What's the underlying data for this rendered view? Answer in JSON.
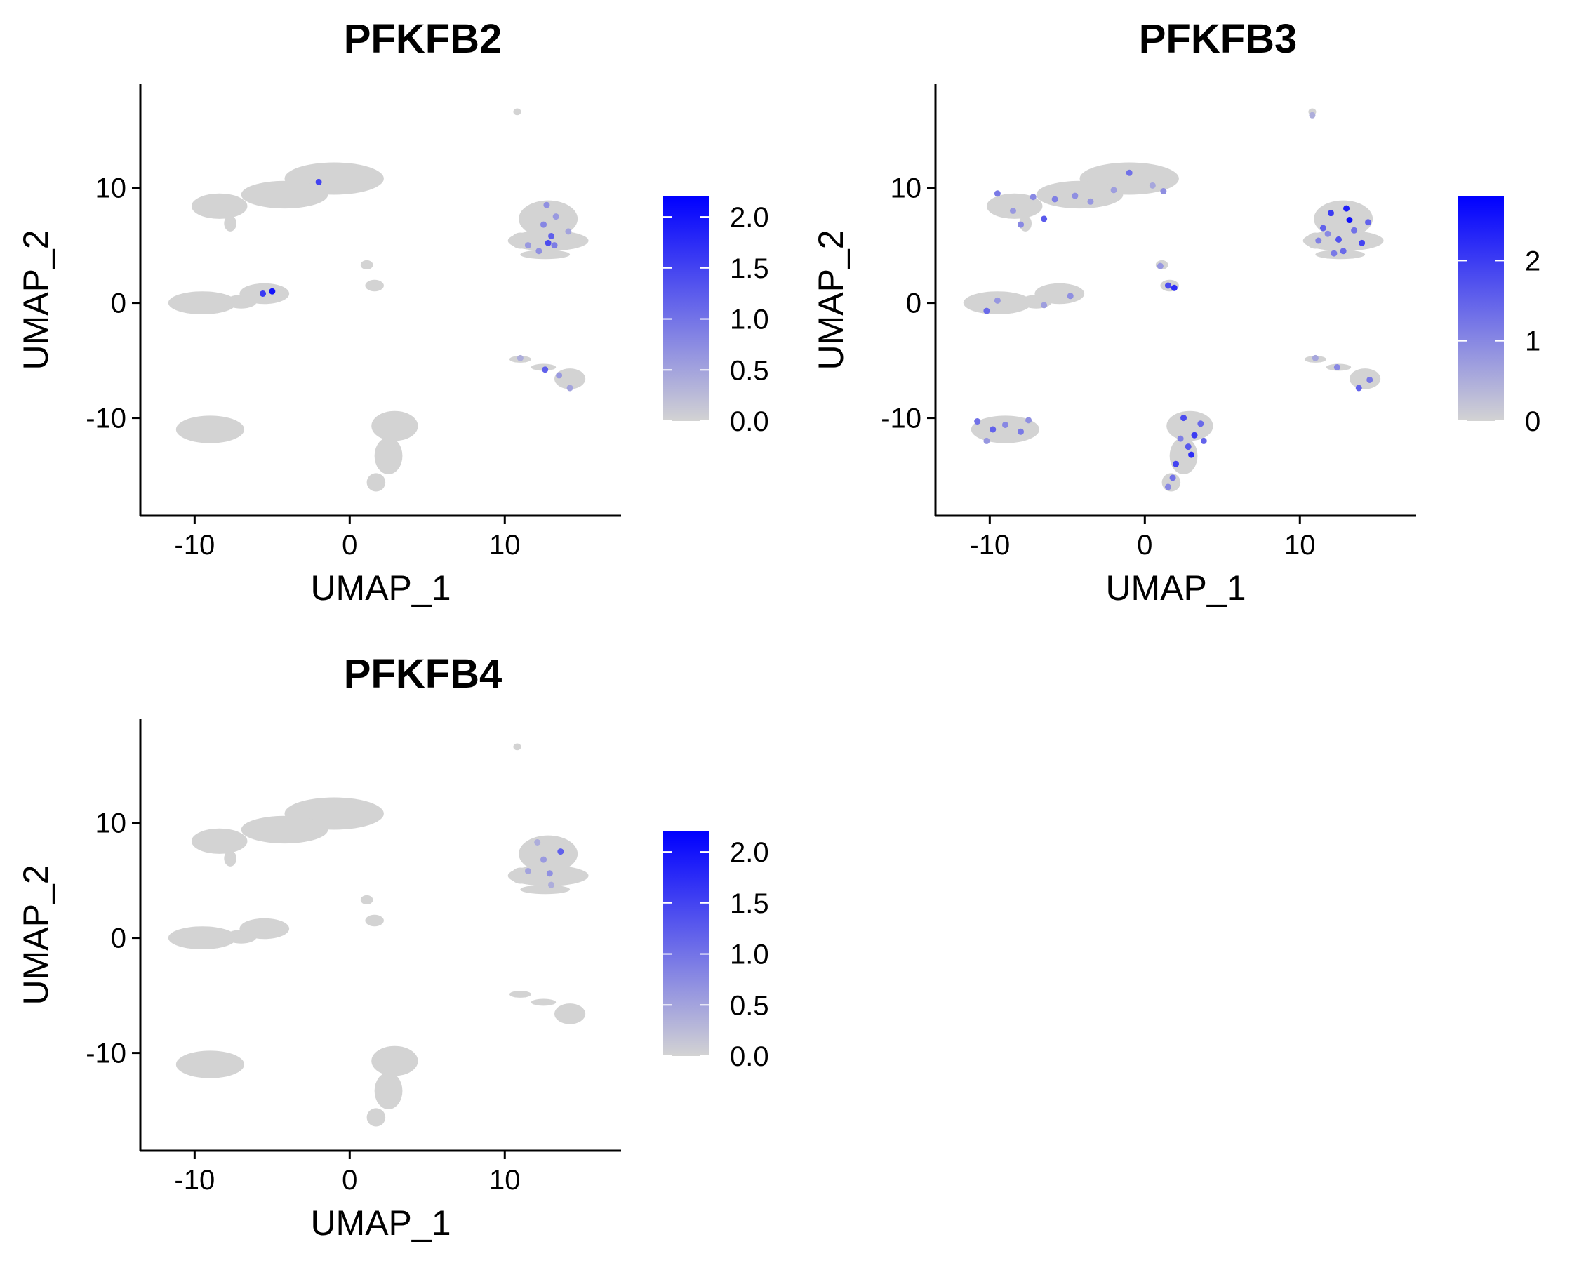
{
  "chart_data": [
    {
      "type": "scatter",
      "title": "PFKFB2",
      "xlabel": "UMAP_1",
      "ylabel": "UMAP_2",
      "xlim": [
        -13.5,
        17.5
      ],
      "ylim": [
        -18.5,
        19
      ],
      "xticks": [
        -10,
        0,
        10
      ],
      "xtick_labels": [
        "-10",
        "0",
        "10"
      ],
      "yticks": [
        -10,
        0,
        10
      ],
      "ytick_labels": [
        "-10",
        "0",
        "10"
      ],
      "legend": {
        "position": "right",
        "min": 0,
        "max": 2.2,
        "ticks": [
          0.0,
          0.5,
          1.0,
          1.5,
          2.0
        ],
        "tick_labels": [
          "0.0",
          "0.5",
          "1.0",
          "1.5",
          "2.0"
        ],
        "low_color": "#d3d3d3",
        "high_color": "#0000ff"
      },
      "points": [
        {
          "x": -2.0,
          "y": 10.5,
          "value": 1.5
        },
        {
          "x": -5.6,
          "y": 0.8,
          "value": 1.6
        },
        {
          "x": -5.0,
          "y": 1.0,
          "value": 2.0
        },
        {
          "x": 13.0,
          "y": 5.8,
          "value": 1.2
        },
        {
          "x": 12.5,
          "y": 6.8,
          "value": 0.8
        },
        {
          "x": 11.5,
          "y": 5.0,
          "value": 0.6
        },
        {
          "x": 12.8,
          "y": 5.2,
          "value": 1.4
        },
        {
          "x": 13.2,
          "y": 5.0,
          "value": 0.9
        },
        {
          "x": 12.2,
          "y": 4.5,
          "value": 0.7
        },
        {
          "x": 13.3,
          "y": 7.5,
          "value": 0.6
        },
        {
          "x": 14.1,
          "y": 6.2,
          "value": 0.5
        },
        {
          "x": 12.7,
          "y": 8.5,
          "value": 0.7
        },
        {
          "x": 12.6,
          "y": -5.8,
          "value": 1.2
        },
        {
          "x": 13.5,
          "y": -6.3,
          "value": 0.6
        },
        {
          "x": 14.2,
          "y": -7.4,
          "value": 0.5
        },
        {
          "x": 11.0,
          "y": -4.8,
          "value": 0.4
        }
      ]
    },
    {
      "type": "scatter",
      "title": "PFKFB3",
      "xlabel": "UMAP_1",
      "ylabel": "UMAP_2",
      "xlim": [
        -13.5,
        17.5
      ],
      "ylim": [
        -18.5,
        19
      ],
      "xticks": [
        -10,
        0,
        10
      ],
      "xtick_labels": [
        "-10",
        "0",
        "10"
      ],
      "yticks": [
        -10,
        0,
        10
      ],
      "ytick_labels": [
        "-10",
        "0",
        "10"
      ],
      "legend": {
        "position": "right",
        "min": 0,
        "max": 2.8,
        "ticks": [
          0,
          1,
          2
        ],
        "tick_labels": [
          "0",
          "1",
          "2"
        ],
        "low_color": "#d3d3d3",
        "high_color": "#0000ff"
      },
      "points": [
        {
          "x": -9.5,
          "y": 9.5,
          "value": 1.2
        },
        {
          "x": -8.5,
          "y": 8.0,
          "value": 0.8
        },
        {
          "x": -7.2,
          "y": 9.2,
          "value": 1.0
        },
        {
          "x": -6.5,
          "y": 7.3,
          "value": 1.6
        },
        {
          "x": -5.8,
          "y": 9.0,
          "value": 1.1
        },
        {
          "x": -4.5,
          "y": 9.3,
          "value": 0.9
        },
        {
          "x": -3.5,
          "y": 8.8,
          "value": 0.8
        },
        {
          "x": -2.0,
          "y": 9.8,
          "value": 0.7
        },
        {
          "x": -1.0,
          "y": 11.3,
          "value": 1.3
        },
        {
          "x": 0.5,
          "y": 10.2,
          "value": 0.6
        },
        {
          "x": 1.2,
          "y": 9.7,
          "value": 0.9
        },
        {
          "x": -8.0,
          "y": 6.8,
          "value": 1.0
        },
        {
          "x": -10.2,
          "y": -0.7,
          "value": 1.4
        },
        {
          "x": -9.5,
          "y": 0.2,
          "value": 0.8
        },
        {
          "x": -6.5,
          "y": -0.2,
          "value": 0.7
        },
        {
          "x": -4.8,
          "y": 0.6,
          "value": 0.9
        },
        {
          "x": 1.5,
          "y": 1.5,
          "value": 1.8
        },
        {
          "x": 1.9,
          "y": 1.3,
          "value": 2.2
        },
        {
          "x": 1.0,
          "y": 3.2,
          "value": 0.8
        },
        {
          "x": 10.8,
          "y": 16.3,
          "value": 0.5
        },
        {
          "x": 11.5,
          "y": 6.5,
          "value": 1.5
        },
        {
          "x": 12.0,
          "y": 7.8,
          "value": 2.0
        },
        {
          "x": 12.5,
          "y": 5.5,
          "value": 1.7
        },
        {
          "x": 13.0,
          "y": 8.2,
          "value": 2.4
        },
        {
          "x": 13.5,
          "y": 6.3,
          "value": 1.3
        },
        {
          "x": 14.0,
          "y": 5.2,
          "value": 1.9
        },
        {
          "x": 12.2,
          "y": 4.3,
          "value": 1.2
        },
        {
          "x": 11.2,
          "y": 5.4,
          "value": 1.1
        },
        {
          "x": 14.4,
          "y": 7.0,
          "value": 1.5
        },
        {
          "x": 13.2,
          "y": 7.2,
          "value": 2.6
        },
        {
          "x": 12.8,
          "y": 4.5,
          "value": 1.4
        },
        {
          "x": 11.8,
          "y": 6.0,
          "value": 1.0
        },
        {
          "x": 12.4,
          "y": -5.6,
          "value": 1.0
        },
        {
          "x": 13.8,
          "y": -7.4,
          "value": 1.5
        },
        {
          "x": 14.5,
          "y": -6.7,
          "value": 1.2
        },
        {
          "x": 11.0,
          "y": -4.8,
          "value": 0.6
        },
        {
          "x": -10.8,
          "y": -10.3,
          "value": 1.3
        },
        {
          "x": -9.8,
          "y": -11.0,
          "value": 1.5
        },
        {
          "x": -9.0,
          "y": -10.6,
          "value": 1.0
        },
        {
          "x": -8.0,
          "y": -11.2,
          "value": 1.2
        },
        {
          "x": -7.5,
          "y": -10.2,
          "value": 0.9
        },
        {
          "x": -10.2,
          "y": -12.0,
          "value": 0.8
        },
        {
          "x": 2.5,
          "y": -10.0,
          "value": 1.8
        },
        {
          "x": 3.2,
          "y": -11.5,
          "value": 2.0
        },
        {
          "x": 2.8,
          "y": -12.5,
          "value": 1.6
        },
        {
          "x": 2.0,
          "y": -14.0,
          "value": 1.9
        },
        {
          "x": 3.6,
          "y": -10.5,
          "value": 1.4
        },
        {
          "x": 1.8,
          "y": -15.2,
          "value": 1.3
        },
        {
          "x": 3.0,
          "y": -13.2,
          "value": 2.2
        },
        {
          "x": 3.8,
          "y": -12.0,
          "value": 1.5
        },
        {
          "x": 2.3,
          "y": -11.8,
          "value": 1.1
        },
        {
          "x": 1.5,
          "y": -16.0,
          "value": 1.0
        }
      ]
    },
    {
      "type": "scatter",
      "title": "PFKFB4",
      "xlabel": "UMAP_1",
      "ylabel": "UMAP_2",
      "xlim": [
        -13.5,
        17.5
      ],
      "ylim": [
        -18.5,
        19
      ],
      "xticks": [
        -10,
        0,
        10
      ],
      "xtick_labels": [
        "-10",
        "0",
        "10"
      ],
      "yticks": [
        -10,
        0,
        10
      ],
      "ytick_labels": [
        "-10",
        "0",
        "10"
      ],
      "legend": {
        "position": "right",
        "min": 0,
        "max": 2.2,
        "ticks": [
          0.0,
          0.5,
          1.0,
          1.5,
          2.0
        ],
        "tick_labels": [
          "0.0",
          "0.5",
          "1.0",
          "1.5",
          "2.0"
        ],
        "low_color": "#d3d3d3",
        "high_color": "#0000ff"
      },
      "points": [
        {
          "x": 13.6,
          "y": 7.5,
          "value": 1.2
        },
        {
          "x": 12.5,
          "y": 6.8,
          "value": 0.6
        },
        {
          "x": 11.5,
          "y": 5.8,
          "value": 0.5
        },
        {
          "x": 12.9,
          "y": 5.6,
          "value": 0.7
        },
        {
          "x": 13.0,
          "y": 4.6,
          "value": 0.4
        },
        {
          "x": 12.1,
          "y": 8.3,
          "value": 0.4
        }
      ]
    }
  ]
}
